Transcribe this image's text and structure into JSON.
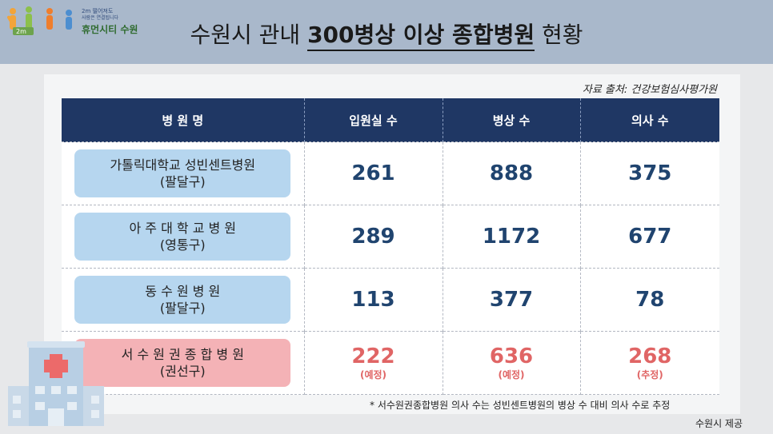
{
  "colors": {
    "header_bg": "#a9b8cb",
    "table_header_bg": "#1f3764",
    "name_box_blue": "#b6d6ef",
    "name_box_pink": "#f4b2b6",
    "number_blue": "#20446f",
    "number_red": "#e06565"
  },
  "logo": {
    "tagline_top": "2m 떨어져도",
    "tagline_sub": "사람은 연결됩니다",
    "brand": "휴먼시티 수원",
    "badge": "2m"
  },
  "header": {
    "title_prefix": "수원시 관내 ",
    "title_highlight": "300병상 이상 종합병원",
    "title_suffix": " 현황"
  },
  "source": "자료 출처: 건강보험심사평가원",
  "table": {
    "columns": [
      "병 원 명",
      "입원실 수",
      "병상 수",
      "의사 수"
    ],
    "rows": [
      {
        "name": "가톨릭대학교 성빈센트병원",
        "district": "(팔달구)",
        "rooms": "261",
        "beds": "888",
        "doctors": "375"
      },
      {
        "name": "아 주 대 학 교 병 원",
        "district": "(영통구)",
        "rooms": "289",
        "beds": "1172",
        "doctors": "677"
      },
      {
        "name": "동 수 원 병 원",
        "district": "(팔달구)",
        "rooms": "113",
        "beds": "377",
        "doctors": "78"
      },
      {
        "name": "서 수 원 권 종 합 병 원",
        "district": "(권선구)",
        "rooms": "222",
        "rooms_note": "(예정)",
        "beds": "636",
        "beds_note": "(예정)",
        "doctors": "268",
        "doctors_note": "(추정)"
      }
    ]
  },
  "footnote": "* 서수원권종합병원 의사 수는 성빈센트병원의 병상 수 대비 의사 수로 추정",
  "credit": "수원시 제공",
  "icons": {
    "logo_figures": "people-figures-icon",
    "hospital": "hospital-building-icon"
  }
}
